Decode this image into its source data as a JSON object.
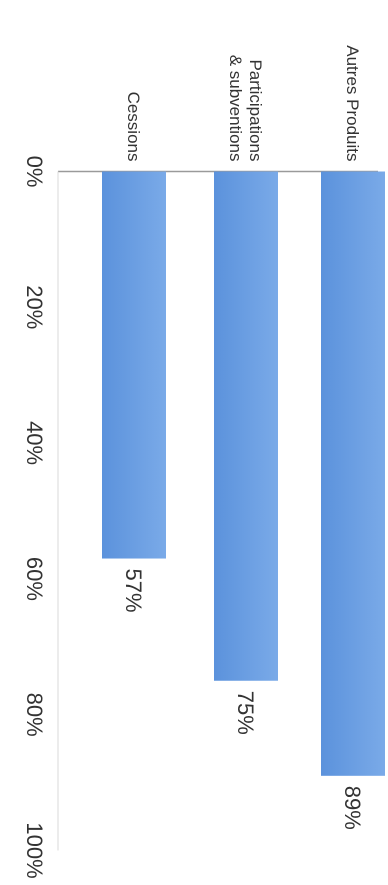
{
  "chart_data": {
    "type": "bar",
    "orientation": "horizontal",
    "categories": [
      "Autres Produits",
      "Participations\n& subventions",
      "Cessions"
    ],
    "values": [
      89,
      75,
      57
    ],
    "data_labels": [
      "89%",
      "75%",
      "57%"
    ],
    "x_ticks": [
      "0%",
      "20%",
      "40%",
      "60%",
      "80%",
      "100%"
    ],
    "xlim": [
      0,
      100
    ],
    "grid": false,
    "legend": "none",
    "bar_color": "#6a9ee0"
  }
}
